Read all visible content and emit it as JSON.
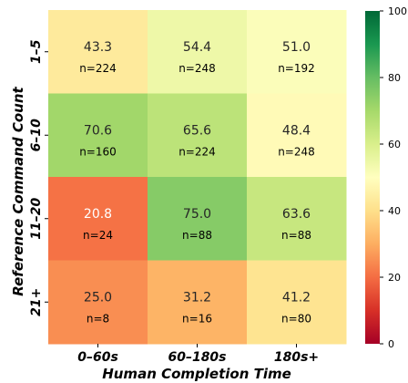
{
  "chart_data": {
    "type": "heatmap",
    "xlabel": "Human Completion Time",
    "ylabel": "Reference Command Count",
    "x_categories": [
      "0–60s",
      "60–180s",
      "180s+"
    ],
    "y_categories": [
      "1–5",
      "6–10",
      "11–20",
      "21+"
    ],
    "values": [
      [
        43.3,
        54.4,
        51.0
      ],
      [
        70.6,
        65.6,
        48.4
      ],
      [
        20.8,
        75.0,
        63.6
      ],
      [
        25.0,
        31.2,
        41.2
      ]
    ],
    "value_text": [
      [
        "43.3",
        "54.4",
        "51.0"
      ],
      [
        "70.6",
        "65.6",
        "48.4"
      ],
      [
        "20.8",
        "75.0",
        "63.6"
      ],
      [
        "25.0",
        "31.2",
        "41.2"
      ]
    ],
    "counts": [
      [
        "n=224",
        "n=248",
        "n=192"
      ],
      [
        "n=160",
        "n=224",
        "n=248"
      ],
      [
        "n=24",
        "n=88",
        "n=88"
      ],
      [
        "n=8",
        "n=16",
        "n=80"
      ]
    ],
    "colorscale": "RdYlGn",
    "colorbar": {
      "min": 0,
      "max": 100,
      "ticks": [
        "0",
        "20",
        "40",
        "60",
        "80",
        "100"
      ]
    }
  }
}
